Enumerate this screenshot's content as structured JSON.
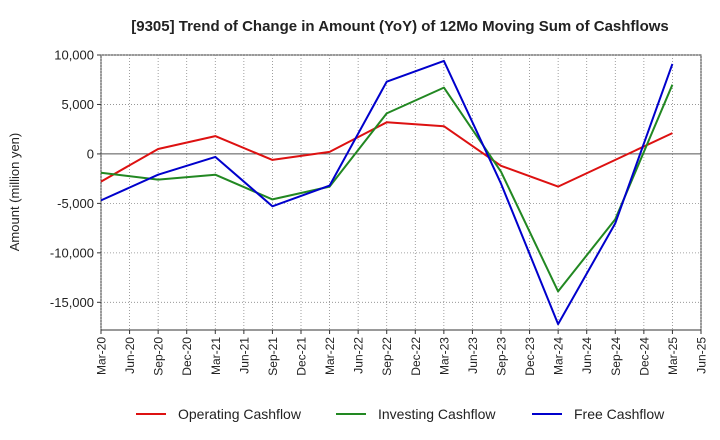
{
  "chart_data": {
    "type": "line",
    "title": "[9305]  Trend of Change in Amount (YoY) of 12Mo Moving Sum of Cashflows",
    "xlabel": "",
    "ylabel": "Amount (million yen)",
    "ylim": [
      -17800,
      10000
    ],
    "y_ticks": [
      10000,
      5000,
      0,
      -5000,
      -10000,
      -15000
    ],
    "y_tick_labels": [
      "10,000",
      "5,000",
      "0",
      "-5,000",
      "-10,000",
      "-15,000"
    ],
    "categories": [
      "Mar-20",
      "Jun-20",
      "Sep-20",
      "Dec-20",
      "Mar-21",
      "Jun-21",
      "Sep-21",
      "Dec-21",
      "Mar-22",
      "Jun-22",
      "Sep-22",
      "Dec-22",
      "Mar-23",
      "Jun-23",
      "Sep-23",
      "Dec-23",
      "Mar-24",
      "Jun-24",
      "Sep-24",
      "Dec-24",
      "Mar-25",
      "Jun-25"
    ],
    "x_tick_labels": [
      "Mar-20",
      "Jun-20",
      "Sep-20",
      "Dec-20",
      "Mar-21",
      "Jun-21",
      "Sep-21",
      "Dec-21",
      "Mar-22",
      "Jun-22",
      "Sep-22",
      "Dec-22",
      "Mar-23",
      "Jun-23",
      "Sep-23",
      "Dec-23",
      "Mar-24",
      "Jun-24",
      "Sep-24",
      "Dec-24",
      "Mar-25",
      "Jun-25"
    ],
    "grid": true,
    "legend_position": "bottom",
    "series": [
      {
        "name": "Operating Cashflow",
        "color": "#dd1111",
        "points": [
          [
            "Mar-20",
            -2800
          ],
          [
            "Sep-20",
            500
          ],
          [
            "Mar-21",
            1800
          ],
          [
            "Sep-21",
            -600
          ],
          [
            "Mar-22",
            200
          ],
          [
            "Sep-22",
            3200
          ],
          [
            "Mar-23",
            2800
          ],
          [
            "Sep-23",
            -1200
          ],
          [
            "Mar-24",
            -3300
          ],
          [
            "Sep-24",
            -600
          ],
          [
            "Mar-25",
            2100
          ]
        ]
      },
      {
        "name": "Investing Cashflow",
        "color": "#228822",
        "points": [
          [
            "Mar-20",
            -1900
          ],
          [
            "Sep-20",
            -2600
          ],
          [
            "Mar-21",
            -2100
          ],
          [
            "Sep-21",
            -4600
          ],
          [
            "Mar-22",
            -3300
          ],
          [
            "Sep-22",
            4100
          ],
          [
            "Mar-23",
            6700
          ],
          [
            "Sep-23",
            -1800
          ],
          [
            "Mar-24",
            -13900
          ],
          [
            "Sep-24",
            -6600
          ],
          [
            "Mar-25",
            7000
          ]
        ]
      },
      {
        "name": "Free Cashflow",
        "color": "#0000cc",
        "points": [
          [
            "Mar-20",
            -4700
          ],
          [
            "Sep-20",
            -2100
          ],
          [
            "Mar-21",
            -300
          ],
          [
            "Sep-21",
            -5300
          ],
          [
            "Mar-22",
            -3200
          ],
          [
            "Sep-22",
            7300
          ],
          [
            "Mar-23",
            9400
          ],
          [
            "Sep-23",
            -3000
          ],
          [
            "Mar-24",
            -17200
          ],
          [
            "Sep-24",
            -7000
          ],
          [
            "Mar-25",
            9100
          ]
        ]
      }
    ]
  }
}
